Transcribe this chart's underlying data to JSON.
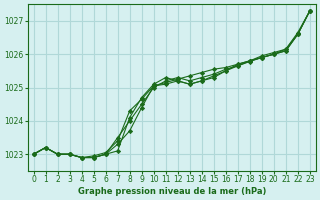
{
  "bg_color": "#d6f0f0",
  "grid_color": "#b0d8d8",
  "line_color": "#1a6b1a",
  "marker_color": "#1a6b1a",
  "xlabel": "Graphe pression niveau de la mer (hPa)",
  "xlabel_color": "#1a6b1a",
  "yticks": [
    1023,
    1024,
    1025,
    1026,
    1027
  ],
  "xticks": [
    0,
    1,
    2,
    3,
    4,
    5,
    6,
    7,
    8,
    9,
    10,
    11,
    12,
    13,
    14,
    15,
    16,
    17,
    18,
    19,
    20,
    21,
    22,
    23
  ],
  "ylim": [
    1022.5,
    1027.5
  ],
  "xlim": [
    -0.5,
    23.5
  ],
  "series": [
    [
      1023.0,
      1023.2,
      1023.0,
      1023.0,
      1022.9,
      1022.9,
      1023.0,
      1023.1,
      1024.1,
      1024.7,
      1025.1,
      1025.3,
      1025.2,
      1025.1,
      1025.2,
      1025.3,
      1025.5,
      1025.7,
      1025.8,
      1025.9,
      1026.0,
      1026.1,
      1026.6,
      1027.3
    ],
    [
      1023.0,
      1023.2,
      1023.0,
      1023.0,
      1022.9,
      1022.9,
      1023.0,
      1023.3,
      1023.7,
      1024.4,
      1025.05,
      1025.1,
      1025.2,
      1025.1,
      1025.2,
      1025.35,
      1025.5,
      1025.65,
      1025.78,
      1025.9,
      1026.0,
      1026.1,
      1026.6,
      1027.3
    ],
    [
      1023.0,
      1023.2,
      1023.0,
      1023.0,
      1022.9,
      1022.95,
      1023.05,
      1023.4,
      1024.3,
      1024.65,
      1025.05,
      1025.15,
      1025.25,
      1025.35,
      1025.45,
      1025.55,
      1025.6,
      1025.7,
      1025.8,
      1025.95,
      1026.05,
      1026.15,
      1026.65,
      1027.3
    ],
    [
      1023.0,
      1023.2,
      1023.0,
      1023.0,
      1022.9,
      1022.9,
      1023.0,
      1023.5,
      1024.0,
      1024.5,
      1025.0,
      1025.2,
      1025.3,
      1025.2,
      1025.3,
      1025.4,
      1025.55,
      1025.65,
      1025.8,
      1025.9,
      1026.0,
      1026.15,
      1026.6,
      1027.3
    ]
  ]
}
